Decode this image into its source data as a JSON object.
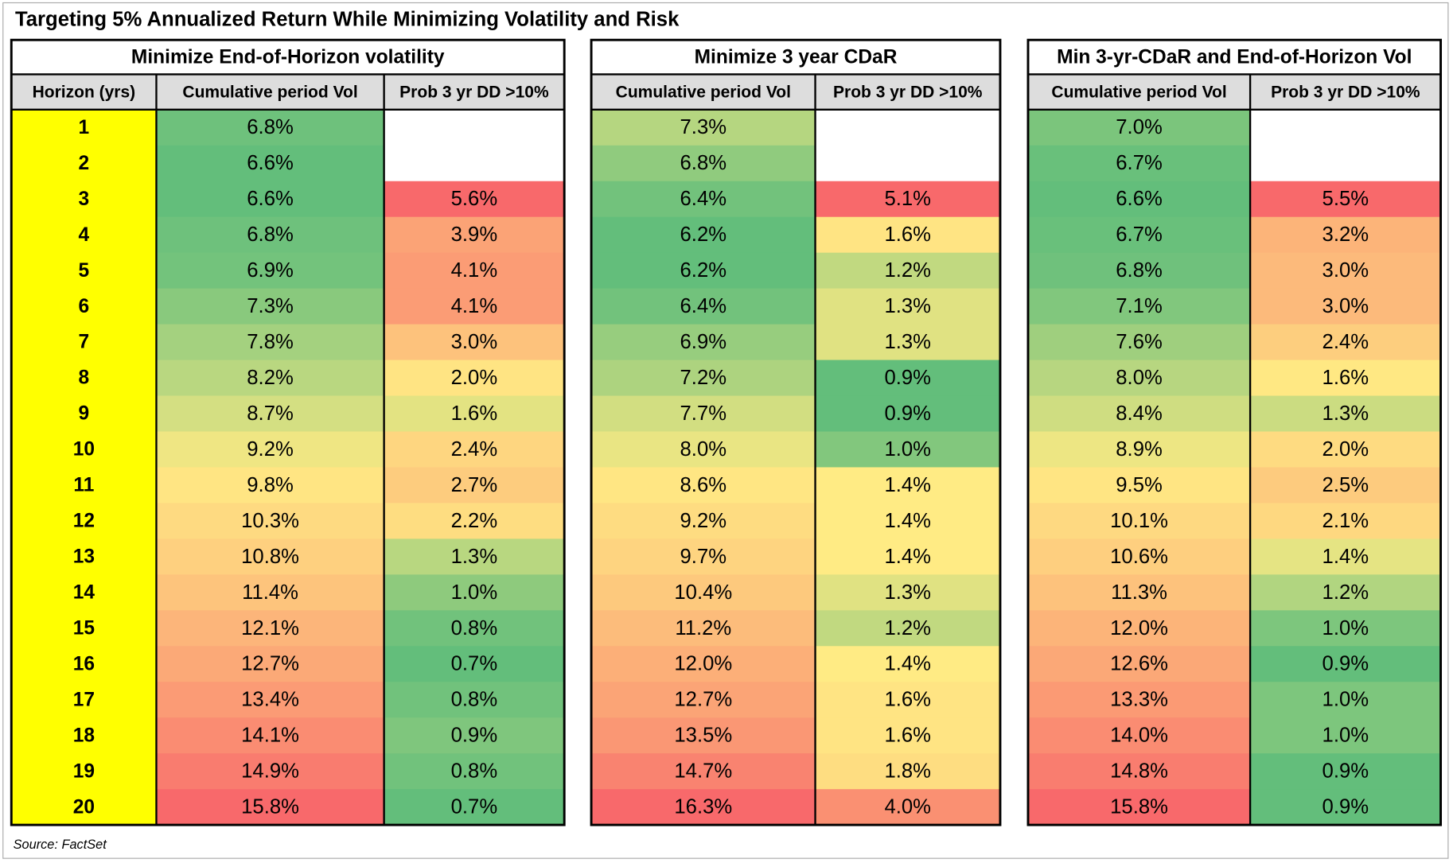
{
  "title": "Targeting 5% Annualized Return While Minimizing Volatility and Risk",
  "row_header": "Horizon (yrs)",
  "horizons": [
    1,
    2,
    3,
    4,
    5,
    6,
    7,
    8,
    9,
    10,
    11,
    12,
    13,
    14,
    15,
    16,
    17,
    18,
    19,
    20
  ],
  "panels": [
    {
      "title": "Minimize End-of-Horizon volatility",
      "columns": [
        {
          "header": "Cumulative period Vol",
          "cells": [
            "6.8%",
            "6.6%",
            "6.6%",
            "6.8%",
            "6.9%",
            "7.3%",
            "7.8%",
            "8.2%",
            "8.7%",
            "9.2%",
            "9.8%",
            "10.3%",
            "10.8%",
            "11.4%",
            "12.1%",
            "12.7%",
            "13.4%",
            "14.1%",
            "14.9%",
            "15.8%"
          ]
        },
        {
          "header": "Prob 3 yr DD >10%",
          "cells": [
            null,
            null,
            "5.6%",
            "3.9%",
            "4.1%",
            "4.1%",
            "3.0%",
            "2.0%",
            "1.6%",
            "2.4%",
            "2.7%",
            "2.2%",
            "1.3%",
            "1.0%",
            "0.8%",
            "0.7%",
            "0.8%",
            "0.9%",
            "0.8%",
            "0.7%"
          ]
        }
      ]
    },
    {
      "title": "Minimize 3 year CDaR",
      "columns": [
        {
          "header": "Cumulative period Vol",
          "cells": [
            "7.3%",
            "6.8%",
            "6.4%",
            "6.2%",
            "6.2%",
            "6.4%",
            "6.9%",
            "7.2%",
            "7.7%",
            "8.0%",
            "8.6%",
            "9.2%",
            "9.7%",
            "10.4%",
            "11.2%",
            "12.0%",
            "12.7%",
            "13.5%",
            "14.7%",
            "16.3%"
          ]
        },
        {
          "header": "Prob 3 yr DD >10%",
          "cells": [
            null,
            null,
            "5.1%",
            "1.6%",
            "1.2%",
            "1.3%",
            "1.3%",
            "0.9%",
            "0.9%",
            "1.0%",
            "1.4%",
            "1.4%",
            "1.4%",
            "1.3%",
            "1.2%",
            "1.4%",
            "1.6%",
            "1.6%",
            "1.8%",
            "4.0%"
          ]
        }
      ]
    },
    {
      "title": "Min 3-yr-CDaR and End-of-Horizon Vol",
      "columns": [
        {
          "header": "Cumulative period Vol",
          "cells": [
            "7.0%",
            "6.7%",
            "6.6%",
            "6.7%",
            "6.8%",
            "7.1%",
            "7.6%",
            "8.0%",
            "8.4%",
            "8.9%",
            "9.5%",
            "10.1%",
            "10.6%",
            "11.3%",
            "12.0%",
            "12.6%",
            "13.3%",
            "14.0%",
            "14.8%",
            "15.8%"
          ]
        },
        {
          "header": "Prob 3 yr DD >10%",
          "cells": [
            null,
            null,
            "5.5%",
            "3.2%",
            "3.0%",
            "3.0%",
            "2.4%",
            "1.6%",
            "1.3%",
            "2.0%",
            "2.5%",
            "2.1%",
            "1.4%",
            "1.2%",
            "1.0%",
            "0.9%",
            "1.0%",
            "1.0%",
            "0.9%",
            "0.9%"
          ]
        }
      ]
    }
  ],
  "source": "Source: FactSet"
}
